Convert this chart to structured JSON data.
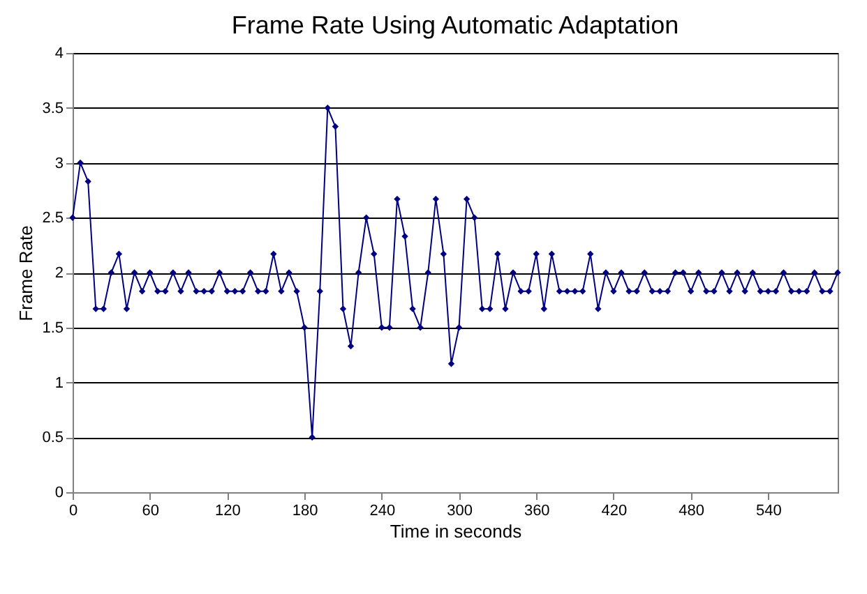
{
  "chart_data": {
    "type": "line",
    "title": "Frame Rate Using Automatic Adaptation",
    "xlabel": "Time in seconds",
    "ylabel": "Frame Rate",
    "x": [
      0,
      6,
      12,
      18,
      24,
      30,
      36,
      42,
      48,
      54,
      60,
      66,
      72,
      78,
      84,
      90,
      96,
      102,
      108,
      114,
      120,
      126,
      132,
      138,
      144,
      150,
      156,
      162,
      168,
      174,
      180,
      186,
      192,
      198,
      204,
      210,
      216,
      222,
      228,
      234,
      240,
      246,
      252,
      258,
      264,
      270,
      276,
      282,
      288,
      294,
      300,
      306,
      312,
      318,
      324,
      330,
      336,
      342,
      348,
      354,
      360,
      366,
      372,
      378,
      384,
      390,
      396,
      402,
      408,
      414,
      420,
      426,
      432,
      438,
      444,
      450,
      456,
      462,
      468,
      474,
      480,
      486,
      492,
      498,
      504,
      510,
      516,
      522,
      528,
      534,
      540,
      546,
      552,
      558,
      564,
      570,
      576,
      582,
      588,
      594
    ],
    "series": [
      {
        "color": "#000080",
        "values": [
          2.5,
          3,
          2.83,
          1.67,
          1.67,
          2,
          2.17,
          1.67,
          2,
          1.83,
          2,
          1.83,
          1.83,
          2,
          1.83,
          2,
          1.83,
          1.83,
          1.83,
          2,
          1.83,
          1.83,
          1.83,
          2,
          1.83,
          1.83,
          2.17,
          1.83,
          2,
          1.83,
          1.5,
          0.5,
          1.83,
          3.5,
          3.33,
          1.67,
          1.33,
          2,
          2.5,
          2.17,
          1.5,
          1.5,
          2.67,
          2.33,
          1.67,
          1.5,
          2,
          2.67,
          2.17,
          1.17,
          1.5,
          2.67,
          2.5,
          1.67,
          1.67,
          2.17,
          1.67,
          2,
          1.83,
          1.83,
          2.17,
          1.67,
          2.17,
          1.83,
          1.83,
          1.83,
          1.83,
          2.17,
          1.67,
          2,
          1.83,
          2,
          1.83,
          1.83,
          2,
          1.83,
          1.83,
          1.83,
          2,
          2,
          1.83,
          2,
          1.83,
          1.83,
          2,
          1.83,
          2,
          1.83,
          2,
          1.83,
          1.83,
          1.83,
          2,
          1.83,
          1.83,
          1.83,
          2,
          1.83,
          1.83,
          2
        ]
      }
    ],
    "xlim": [
      0,
      594
    ],
    "xticks": [
      0,
      60,
      120,
      180,
      240,
      300,
      360,
      420,
      480,
      540
    ],
    "ylim": [
      0,
      4
    ],
    "yticks": [
      0,
      0.5,
      1,
      1.5,
      2,
      2.5,
      3,
      3.5,
      4
    ],
    "grid": "y",
    "marker": "diamond",
    "line_style": "solid"
  }
}
